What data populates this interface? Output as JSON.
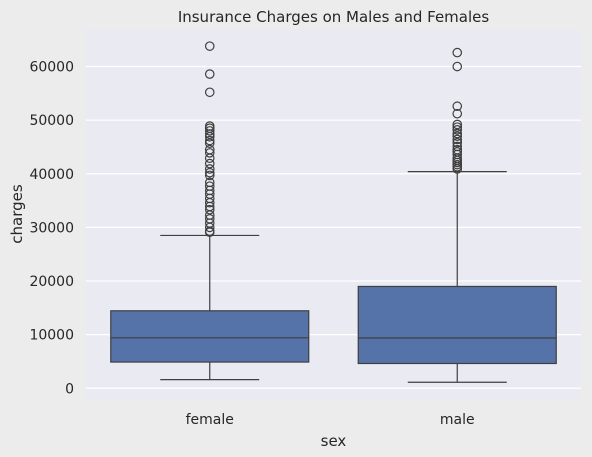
{
  "chart_data": {
    "type": "box",
    "title": "Insurance Charges on Males and Females",
    "xlabel": "sex",
    "ylabel": "charges",
    "ylim": [
      -2000,
      67000
    ],
    "yticks": [
      0,
      10000,
      20000,
      30000,
      40000,
      50000,
      60000
    ],
    "grid": true,
    "categories": [
      "female",
      "male"
    ],
    "boxes": [
      {
        "category": "female",
        "whisker_low": 1610,
        "q1": 4890,
        "median": 9410,
        "q3": 14450,
        "whisker_high": 28500,
        "outliers": [
          29100,
          29300,
          30000,
          30800,
          31600,
          32300,
          33300,
          33900,
          34600,
          35400,
          36200,
          36900,
          37700,
          38400,
          39700,
          40200,
          40900,
          41900,
          42900,
          43900,
          44500,
          45700,
          46200,
          46900,
          47400,
          48000,
          48500,
          48900,
          55200,
          58600,
          63800
        ]
      },
      {
        "category": "male",
        "whisker_low": 1120,
        "q1": 4620,
        "median": 9370,
        "q3": 18990,
        "whisker_high": 40400,
        "outliers": [
          40900,
          41300,
          41700,
          42100,
          42500,
          42900,
          43600,
          44100,
          44500,
          45100,
          45800,
          46400,
          47000,
          47500,
          48200,
          48700,
          49200,
          51200,
          52600,
          60000,
          62600
        ]
      }
    ],
    "colors": {
      "box_fill": "#5573a8",
      "line": "#3f3f3f",
      "plot_background": "#eaeaf2",
      "page_background": "#ececec",
      "grid": "#ffffff"
    }
  }
}
